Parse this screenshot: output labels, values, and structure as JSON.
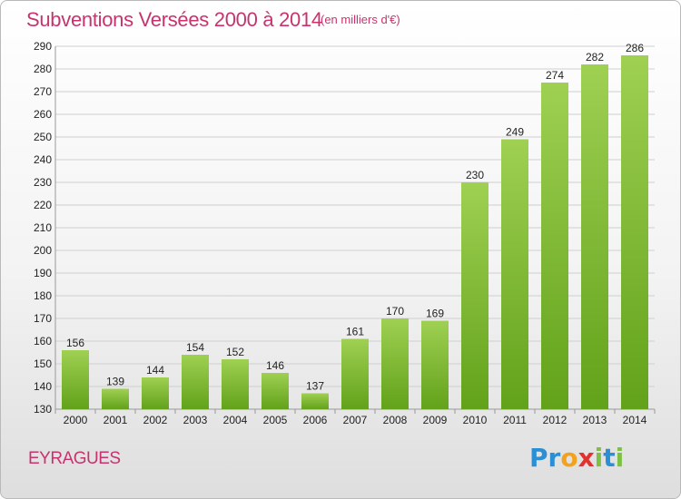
{
  "header": {
    "title": "Subventions Versées 2000 à 2014",
    "unit": "(en milliers d'€)"
  },
  "footer": {
    "commune": "EYRAGUES",
    "logo_letters": [
      {
        "ch": "P",
        "color": "#2a8fd4"
      },
      {
        "ch": "r",
        "color": "#2a8fd4"
      },
      {
        "ch": "o",
        "color": "#f2a21b"
      },
      {
        "ch": "x",
        "color": "#e2322f"
      },
      {
        "ch": "i",
        "color": "#7cc142"
      },
      {
        "ch": "t",
        "color": "#2a8fd4"
      },
      {
        "ch": "i",
        "color": "#7cc142"
      }
    ]
  },
  "colors": {
    "bar_light": "#9fd052",
    "bar_dark": "#62a21a",
    "grid": "#cfcfcf",
    "accent": "#c8336e"
  },
  "chart_data": {
    "type": "bar",
    "categories": [
      "2000",
      "2001",
      "2002",
      "2003",
      "2004",
      "2005",
      "2006",
      "2007",
      "2008",
      "2009",
      "2010",
      "2011",
      "2012",
      "2013",
      "2014"
    ],
    "values": [
      156,
      139,
      144,
      154,
      152,
      146,
      137,
      161,
      170,
      169,
      230,
      249,
      274,
      282,
      286
    ],
    "ylim": [
      130,
      290
    ],
    "yticks": [
      130,
      140,
      150,
      160,
      170,
      180,
      190,
      200,
      210,
      220,
      230,
      240,
      250,
      260,
      270,
      280,
      290
    ],
    "grid": true,
    "show_value_labels": true
  }
}
